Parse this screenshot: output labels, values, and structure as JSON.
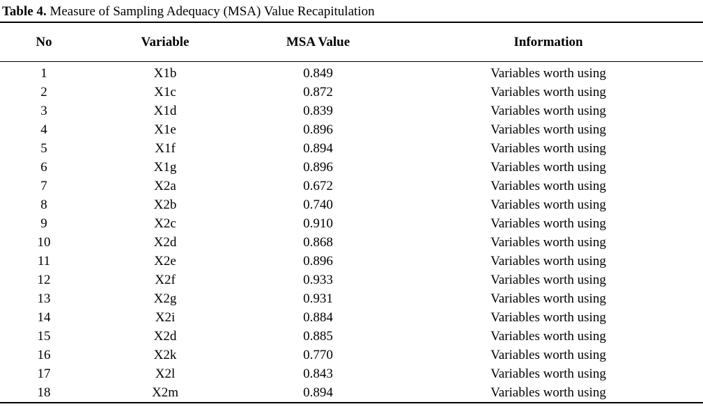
{
  "title": {
    "label": "Table 4.",
    "text": " Measure of Sampling Adequacy (MSA) Value Recapitulation"
  },
  "table": {
    "columns": [
      "No",
      "Variable",
      "MSA Value",
      "Information"
    ],
    "rows": [
      {
        "no": "1",
        "variable": "X1b",
        "msa_value": "0.849",
        "information": "Variables worth using"
      },
      {
        "no": "2",
        "variable": "X1c",
        "msa_value": "0.872",
        "information": "Variables worth using"
      },
      {
        "no": "3",
        "variable": "X1d",
        "msa_value": "0.839",
        "information": "Variables worth using"
      },
      {
        "no": "4",
        "variable": "X1e",
        "msa_value": "0.896",
        "information": "Variables worth using"
      },
      {
        "no": "5",
        "variable": "X1f",
        "msa_value": "0.894",
        "information": "Variables worth using"
      },
      {
        "no": "6",
        "variable": "X1g",
        "msa_value": "0.896",
        "information": "Variables worth using"
      },
      {
        "no": "7",
        "variable": "X2a",
        "msa_value": "0.672",
        "information": "Variables worth using"
      },
      {
        "no": "8",
        "variable": "X2b",
        "msa_value": "0.740",
        "information": "Variables worth using"
      },
      {
        "no": "9",
        "variable": "X2c",
        "msa_value": "0.910",
        "information": "Variables worth using"
      },
      {
        "no": "10",
        "variable": "X2d",
        "msa_value": "0.868",
        "information": "Variables worth using"
      },
      {
        "no": "11",
        "variable": "X2e",
        "msa_value": "0.896",
        "information": "Variables worth using"
      },
      {
        "no": "12",
        "variable": "X2f",
        "msa_value": "0.933",
        "information": "Variables worth using"
      },
      {
        "no": "13",
        "variable": "X2g",
        "msa_value": "0.931",
        "information": "Variables worth using"
      },
      {
        "no": "14",
        "variable": "X2i",
        "msa_value": "0.884",
        "information": "Variables worth using"
      },
      {
        "no": "15",
        "variable": "X2d",
        "msa_value": "0.885",
        "information": "Variables worth using"
      },
      {
        "no": "16",
        "variable": "X2k",
        "msa_value": "0.770",
        "information": "Variables worth using"
      },
      {
        "no": "17",
        "variable": "X2l",
        "msa_value": "0.843",
        "information": "Variables worth using"
      },
      {
        "no": "18",
        "variable": "X2m",
        "msa_value": "0.894",
        "information": "Variables worth using"
      }
    ]
  }
}
